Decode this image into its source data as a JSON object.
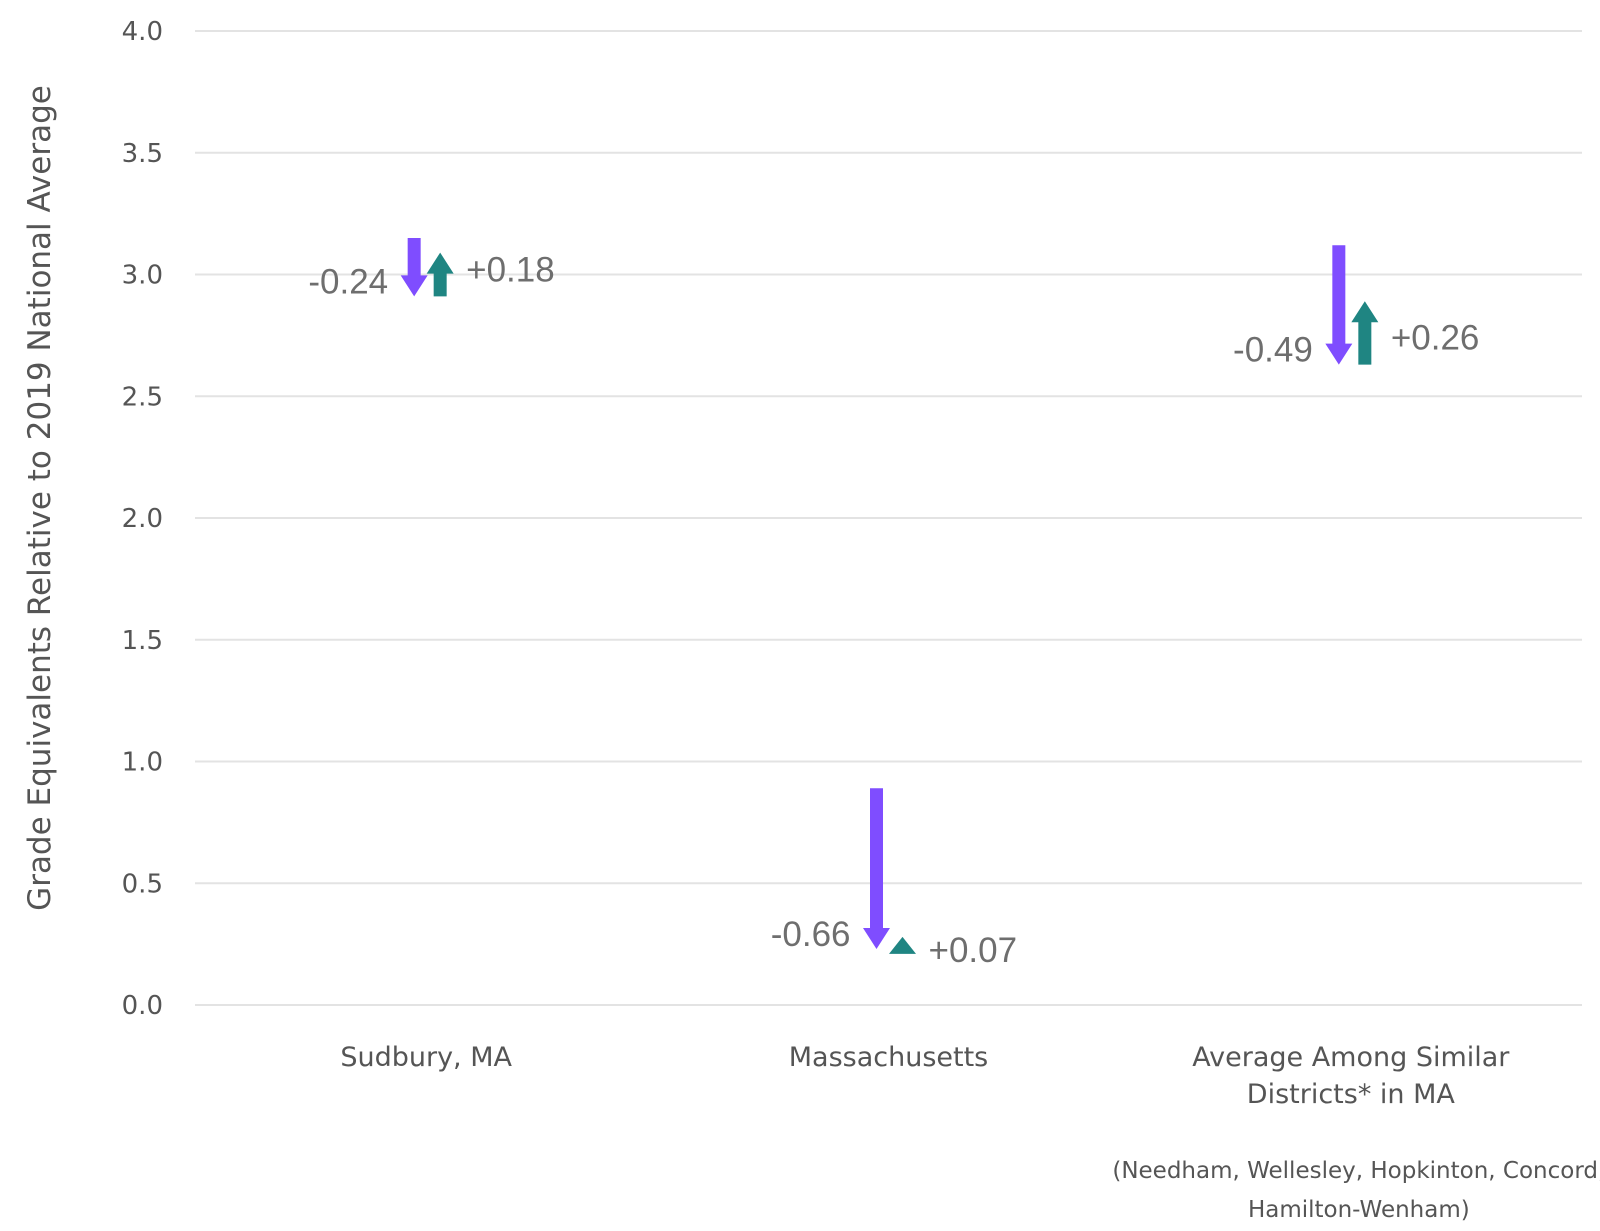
{
  "chart_data": {
    "type": "arrow",
    "ylabel": "Grade Equivalents Relative to 2019 National Average",
    "xlabel": "",
    "ylim": [
      0,
      4
    ],
    "yticks": [
      "0.0",
      "0.5",
      "1.0",
      "1.5",
      "2.0",
      "2.5",
      "3.0",
      "3.5",
      "4.0"
    ],
    "grid": true,
    "colors": {
      "decline": "#7f4dff",
      "recovery": "#1f8582",
      "grid": "#e3e3e3",
      "text": "#555555"
    },
    "categories": [
      {
        "lines": [
          "Sudbury, MA"
        ],
        "note_lines": []
      },
      {
        "lines": [
          "Massachusetts"
        ],
        "note_lines": []
      },
      {
        "lines": [
          "Average Among Similar",
          "Districts* in MA"
        ],
        "note_lines": [
          "(Needham, Wellesley, Hopkinton, Concord,",
          "Hamilton-Wenham)"
        ]
      }
    ],
    "series": [
      {
        "name": "",
        "points": [
          {
            "start": 3.15,
            "end": 2.91,
            "label": "-0.24"
          },
          {
            "start": 0.89,
            "end": 0.23,
            "label": "-0.66"
          },
          {
            "start": 3.12,
            "end": 2.63,
            "label": "-0.49"
          }
        ]
      },
      {
        "name": "",
        "points": [
          {
            "start": 2.91,
            "end": 3.09,
            "label": "+0.18"
          },
          {
            "start": 0.21,
            "end": 0.28,
            "label": "+0.07"
          },
          {
            "start": 2.63,
            "end": 2.89,
            "label": "+0.26"
          }
        ]
      }
    ]
  }
}
